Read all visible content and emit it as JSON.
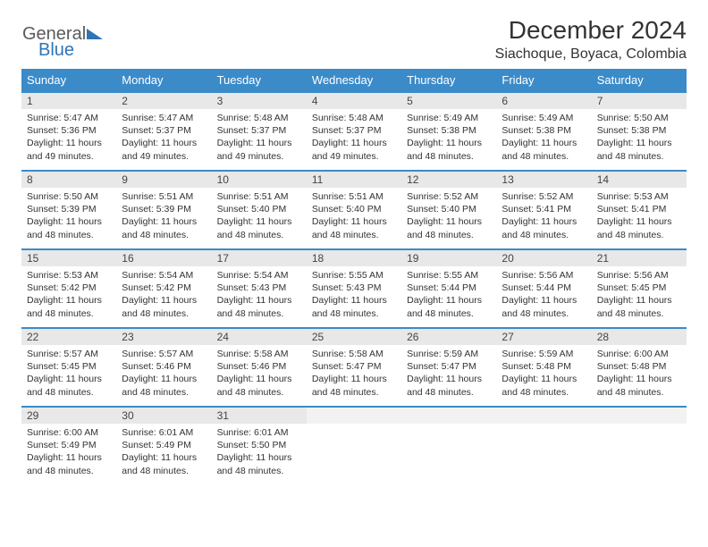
{
  "logo": {
    "word1": "General",
    "word2": "Blue"
  },
  "title": "December 2024",
  "location": "Siachoque, Boyaca, Colombia",
  "headers": [
    "Sunday",
    "Monday",
    "Tuesday",
    "Wednesday",
    "Thursday",
    "Friday",
    "Saturday"
  ],
  "colors": {
    "header_bg": "#3b8bc9",
    "header_fg": "#ffffff",
    "daynum_bg": "#e8e8e8",
    "border": "#3b8bc9",
    "logo_gray": "#5a5a5a",
    "logo_blue": "#2e75b6"
  },
  "weeks": [
    [
      {
        "n": "1",
        "sr": "5:47 AM",
        "ss": "5:36 PM",
        "dl": "11 hours and 49 minutes."
      },
      {
        "n": "2",
        "sr": "5:47 AM",
        "ss": "5:37 PM",
        "dl": "11 hours and 49 minutes."
      },
      {
        "n": "3",
        "sr": "5:48 AM",
        "ss": "5:37 PM",
        "dl": "11 hours and 49 minutes."
      },
      {
        "n": "4",
        "sr": "5:48 AM",
        "ss": "5:37 PM",
        "dl": "11 hours and 49 minutes."
      },
      {
        "n": "5",
        "sr": "5:49 AM",
        "ss": "5:38 PM",
        "dl": "11 hours and 48 minutes."
      },
      {
        "n": "6",
        "sr": "5:49 AM",
        "ss": "5:38 PM",
        "dl": "11 hours and 48 minutes."
      },
      {
        "n": "7",
        "sr": "5:50 AM",
        "ss": "5:38 PM",
        "dl": "11 hours and 48 minutes."
      }
    ],
    [
      {
        "n": "8",
        "sr": "5:50 AM",
        "ss": "5:39 PM",
        "dl": "11 hours and 48 minutes."
      },
      {
        "n": "9",
        "sr": "5:51 AM",
        "ss": "5:39 PM",
        "dl": "11 hours and 48 minutes."
      },
      {
        "n": "10",
        "sr": "5:51 AM",
        "ss": "5:40 PM",
        "dl": "11 hours and 48 minutes."
      },
      {
        "n": "11",
        "sr": "5:51 AM",
        "ss": "5:40 PM",
        "dl": "11 hours and 48 minutes."
      },
      {
        "n": "12",
        "sr": "5:52 AM",
        "ss": "5:40 PM",
        "dl": "11 hours and 48 minutes."
      },
      {
        "n": "13",
        "sr": "5:52 AM",
        "ss": "5:41 PM",
        "dl": "11 hours and 48 minutes."
      },
      {
        "n": "14",
        "sr": "5:53 AM",
        "ss": "5:41 PM",
        "dl": "11 hours and 48 minutes."
      }
    ],
    [
      {
        "n": "15",
        "sr": "5:53 AM",
        "ss": "5:42 PM",
        "dl": "11 hours and 48 minutes."
      },
      {
        "n": "16",
        "sr": "5:54 AM",
        "ss": "5:42 PM",
        "dl": "11 hours and 48 minutes."
      },
      {
        "n": "17",
        "sr": "5:54 AM",
        "ss": "5:43 PM",
        "dl": "11 hours and 48 minutes."
      },
      {
        "n": "18",
        "sr": "5:55 AM",
        "ss": "5:43 PM",
        "dl": "11 hours and 48 minutes."
      },
      {
        "n": "19",
        "sr": "5:55 AM",
        "ss": "5:44 PM",
        "dl": "11 hours and 48 minutes."
      },
      {
        "n": "20",
        "sr": "5:56 AM",
        "ss": "5:44 PM",
        "dl": "11 hours and 48 minutes."
      },
      {
        "n": "21",
        "sr": "5:56 AM",
        "ss": "5:45 PM",
        "dl": "11 hours and 48 minutes."
      }
    ],
    [
      {
        "n": "22",
        "sr": "5:57 AM",
        "ss": "5:45 PM",
        "dl": "11 hours and 48 minutes."
      },
      {
        "n": "23",
        "sr": "5:57 AM",
        "ss": "5:46 PM",
        "dl": "11 hours and 48 minutes."
      },
      {
        "n": "24",
        "sr": "5:58 AM",
        "ss": "5:46 PM",
        "dl": "11 hours and 48 minutes."
      },
      {
        "n": "25",
        "sr": "5:58 AM",
        "ss": "5:47 PM",
        "dl": "11 hours and 48 minutes."
      },
      {
        "n": "26",
        "sr": "5:59 AM",
        "ss": "5:47 PM",
        "dl": "11 hours and 48 minutes."
      },
      {
        "n": "27",
        "sr": "5:59 AM",
        "ss": "5:48 PM",
        "dl": "11 hours and 48 minutes."
      },
      {
        "n": "28",
        "sr": "6:00 AM",
        "ss": "5:48 PM",
        "dl": "11 hours and 48 minutes."
      }
    ],
    [
      {
        "n": "29",
        "sr": "6:00 AM",
        "ss": "5:49 PM",
        "dl": "11 hours and 48 minutes."
      },
      {
        "n": "30",
        "sr": "6:01 AM",
        "ss": "5:49 PM",
        "dl": "11 hours and 48 minutes."
      },
      {
        "n": "31",
        "sr": "6:01 AM",
        "ss": "5:50 PM",
        "dl": "11 hours and 48 minutes."
      },
      null,
      null,
      null,
      null
    ]
  ],
  "labels": {
    "sunrise": "Sunrise:",
    "sunset": "Sunset:",
    "daylight": "Daylight:"
  }
}
